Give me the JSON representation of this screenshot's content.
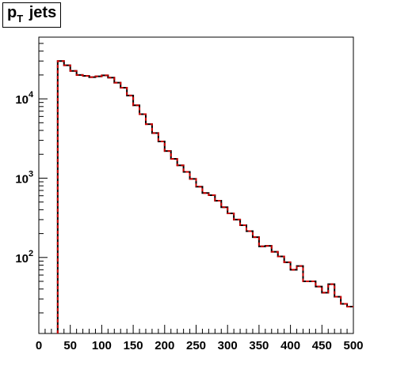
{
  "chart_data": {
    "type": "line",
    "title": {
      "main": "p",
      "subscript": "T",
      "rest": " jets"
    },
    "xlabel": "",
    "ylabel": "",
    "xlim": [
      0,
      500
    ],
    "ylim": [
      11,
      60000
    ],
    "yscale": "log",
    "grid": false,
    "legend": "none",
    "bin_width": 10,
    "x_ticks": [
      0,
      50,
      100,
      150,
      200,
      250,
      300,
      350,
      400,
      450,
      500
    ],
    "y_ticks": [
      {
        "value": 100,
        "base": "10",
        "exp": "2"
      },
      {
        "value": 1000,
        "base": "10",
        "exp": "3"
      },
      {
        "value": 10000,
        "base": "10",
        "exp": "4"
      }
    ],
    "series": [
      {
        "color": "#000000",
        "style": "solid",
        "bin_lows": [
          30,
          40,
          50,
          60,
          70,
          80,
          90,
          100,
          110,
          120,
          130,
          140,
          150,
          160,
          170,
          180,
          190,
          200,
          210,
          220,
          230,
          240,
          250,
          260,
          270,
          280,
          290,
          300,
          310,
          320,
          330,
          340,
          350,
          360,
          370,
          380,
          390,
          400,
          410,
          420,
          430,
          440,
          450,
          460,
          470,
          480,
          490
        ],
        "values": [
          30000,
          26500,
          22500,
          20000,
          19500,
          18800,
          19200,
          19800,
          18500,
          16000,
          13800,
          11000,
          8300,
          6400,
          4800,
          3700,
          2900,
          2200,
          1750,
          1450,
          1200,
          980,
          780,
          650,
          610,
          520,
          430,
          360,
          300,
          255,
          215,
          180,
          138,
          140,
          118,
          103,
          87,
          70,
          78,
          50,
          50,
          43,
          36,
          46,
          32,
          26,
          24
        ]
      },
      {
        "color": "#cc0000",
        "style": "dashed",
        "bin_lows": [
          30,
          40,
          50,
          60,
          70,
          80,
          90,
          100,
          110,
          120,
          130,
          140,
          150,
          160,
          170,
          180,
          190,
          200,
          210,
          220,
          230,
          240,
          250,
          260,
          270,
          280,
          290,
          300,
          310,
          320,
          330,
          340,
          350,
          360,
          370,
          380,
          390,
          400,
          410,
          420,
          430,
          440,
          450,
          460,
          470,
          480,
          490
        ],
        "values": [
          30000,
          26500,
          22500,
          20000,
          19500,
          18800,
          19200,
          19800,
          18500,
          16000,
          13800,
          11000,
          8300,
          6400,
          4800,
          3700,
          2900,
          2200,
          1750,
          1450,
          1200,
          980,
          780,
          650,
          610,
          520,
          430,
          360,
          300,
          255,
          215,
          180,
          138,
          140,
          118,
          103,
          87,
          70,
          78,
          50,
          50,
          43,
          36,
          46,
          32,
          26,
          24
        ]
      }
    ]
  }
}
